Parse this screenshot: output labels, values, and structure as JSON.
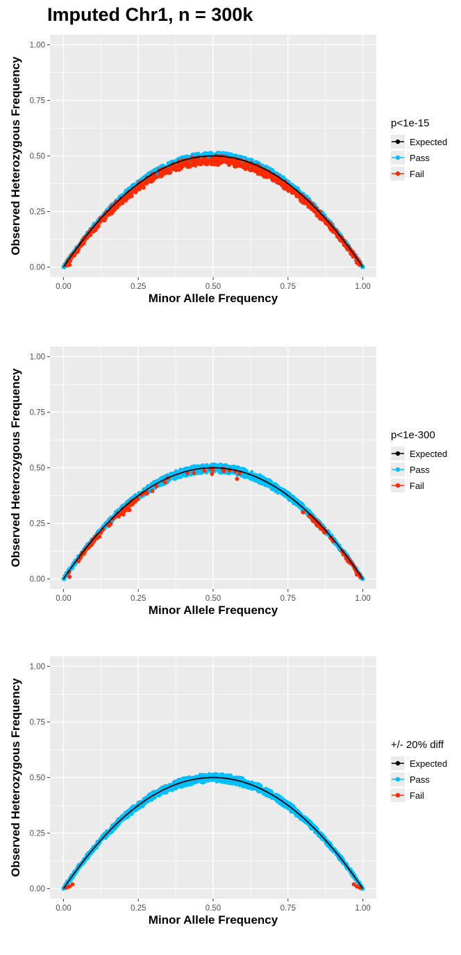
{
  "title": "Imputed Chr1, n = 300k",
  "colors": {
    "panel_bg": "#EBEBEB",
    "grid_major": "#FFFFFF",
    "expected": "#000000",
    "pass": "#00BFFF",
    "fail": "#FF2A00"
  },
  "chart_data": [
    {
      "type": "scatter",
      "title": "",
      "xlabel": "Minor Allele Frequency",
      "ylabel": "Observed Heterozygous Frequency",
      "xlim": [
        0,
        1
      ],
      "ylim": [
        0,
        1
      ],
      "x_ticks": [
        "0.00",
        "0.25",
        "0.50",
        "0.75",
        "1.00"
      ],
      "y_ticks": [
        "0.00",
        "0.25",
        "0.50",
        "0.75",
        "1.00"
      ],
      "grid": true,
      "legend_position": "right",
      "legend_title": "p<1e-15",
      "legend_entries": [
        "Expected",
        "Pass",
        "Fail"
      ],
      "series": [
        {
          "name": "Expected",
          "kind": "line",
          "x": [
            0,
            0.1,
            0.2,
            0.3,
            0.4,
            0.5,
            0.6,
            0.7,
            0.8,
            0.9,
            1.0
          ],
          "y": [
            0,
            0.18,
            0.32,
            0.42,
            0.48,
            0.5,
            0.48,
            0.42,
            0.32,
            0.18,
            0
          ]
        },
        {
          "name": "Pass",
          "kind": "points",
          "x": [
            0,
            0.1,
            0.2,
            0.3,
            0.4,
            0.5,
            0.6,
            0.7,
            0.8,
            0.9,
            1.0
          ],
          "y": [
            0,
            0.18,
            0.32,
            0.42,
            0.48,
            0.5,
            0.48,
            0.42,
            0.32,
            0.18,
            0
          ]
        },
        {
          "name": "Fail",
          "kind": "points",
          "x": [
            0.02,
            0.05,
            0.1,
            0.15,
            0.2,
            0.25,
            0.3,
            0.35,
            0.4,
            0.45,
            0.5,
            0.55,
            0.58,
            0.6,
            0.65,
            0.7,
            0.75,
            0.8,
            0.85,
            0.9,
            0.95,
            0.98
          ],
          "y": [
            0.01,
            0.08,
            0.16,
            0.24,
            0.3,
            0.36,
            0.4,
            0.44,
            0.46,
            0.48,
            0.48,
            0.47,
            0.46,
            0.45,
            0.42,
            0.39,
            0.35,
            0.29,
            0.23,
            0.16,
            0.08,
            0.02
          ]
        }
      ]
    },
    {
      "type": "scatter",
      "title": "",
      "xlabel": "Minor Allele Frequency",
      "ylabel": "Observed Heterozygous Frequency",
      "xlim": [
        0,
        1
      ],
      "ylim": [
        0,
        1
      ],
      "x_ticks": [
        "0.00",
        "0.25",
        "0.50",
        "0.75",
        "1.00"
      ],
      "y_ticks": [
        "0.00",
        "0.25",
        "0.50",
        "0.75",
        "1.00"
      ],
      "grid": true,
      "legend_position": "right",
      "legend_title": "p<1e-300",
      "legend_entries": [
        "Expected",
        "Pass",
        "Fail"
      ],
      "series": [
        {
          "name": "Expected",
          "kind": "line",
          "x": [
            0,
            0.1,
            0.2,
            0.3,
            0.4,
            0.5,
            0.6,
            0.7,
            0.8,
            0.9,
            1.0
          ],
          "y": [
            0,
            0.18,
            0.32,
            0.42,
            0.48,
            0.5,
            0.48,
            0.42,
            0.32,
            0.18,
            0
          ]
        },
        {
          "name": "Pass",
          "kind": "points",
          "x": [
            0,
            0.1,
            0.2,
            0.3,
            0.4,
            0.5,
            0.6,
            0.7,
            0.8,
            0.9,
            1.0
          ],
          "y": [
            0,
            0.18,
            0.32,
            0.42,
            0.48,
            0.5,
            0.48,
            0.42,
            0.32,
            0.18,
            0
          ]
        },
        {
          "name": "Fail",
          "kind": "points",
          "x": [
            0.02,
            0.05,
            0.12,
            0.2,
            0.22,
            0.58,
            0.8,
            0.85,
            0.9,
            0.95,
            0.98
          ],
          "y": [
            0.01,
            0.08,
            0.19,
            0.29,
            0.31,
            0.45,
            0.3,
            0.24,
            0.17,
            0.08,
            0.02
          ]
        }
      ]
    },
    {
      "type": "scatter",
      "title": "",
      "xlabel": "Minor Allele Frequency",
      "ylabel": "Observed Heterozygous Frequency",
      "xlim": [
        0,
        1
      ],
      "ylim": [
        0,
        1
      ],
      "x_ticks": [
        "0.00",
        "0.25",
        "0.50",
        "0.75",
        "1.00"
      ],
      "y_ticks": [
        "0.00",
        "0.25",
        "0.50",
        "0.75",
        "1.00"
      ],
      "grid": true,
      "legend_position": "right",
      "legend_title": "+/- 20% diff",
      "legend_entries": [
        "Expected",
        "Pass",
        "Fail"
      ],
      "series": [
        {
          "name": "Expected",
          "kind": "line",
          "x": [
            0,
            0.1,
            0.2,
            0.3,
            0.4,
            0.5,
            0.6,
            0.7,
            0.8,
            0.9,
            1.0
          ],
          "y": [
            0,
            0.18,
            0.32,
            0.42,
            0.48,
            0.5,
            0.48,
            0.42,
            0.32,
            0.18,
            0
          ]
        },
        {
          "name": "Pass",
          "kind": "points",
          "x": [
            0,
            0.1,
            0.2,
            0.3,
            0.4,
            0.5,
            0.6,
            0.7,
            0.8,
            0.9,
            1.0
          ],
          "y": [
            0,
            0.18,
            0.32,
            0.42,
            0.48,
            0.5,
            0.48,
            0.42,
            0.32,
            0.18,
            0
          ]
        },
        {
          "name": "Fail",
          "kind": "points",
          "x": [
            0.01,
            0.02,
            0.03,
            0.97,
            0.98,
            0.99
          ],
          "y": [
            0.005,
            0.01,
            0.02,
            0.02,
            0.01,
            0.005
          ]
        }
      ]
    }
  ]
}
